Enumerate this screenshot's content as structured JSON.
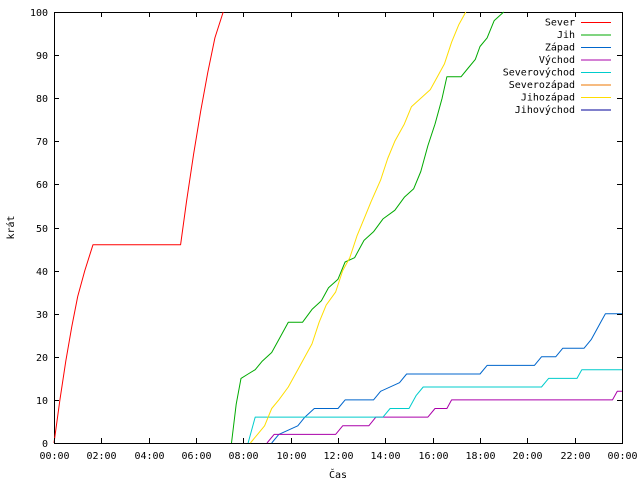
{
  "chart_data": {
    "type": "line",
    "title": "",
    "xlabel": "Čas",
    "ylabel": "krát",
    "xlim": [
      0,
      24
    ],
    "ylim": [
      0,
      100
    ],
    "x_tick_labels": [
      "00:00",
      "02:00",
      "04:00",
      "06:00",
      "08:00",
      "10:00",
      "12:00",
      "14:00",
      "16:00",
      "18:00",
      "20:00",
      "22:00",
      "00:00"
    ],
    "y_tick_labels": [
      "0",
      "10",
      "20",
      "30",
      "40",
      "50",
      "60",
      "70",
      "80",
      "90",
      "100"
    ],
    "legend_position": "top-right",
    "grid": false,
    "series": [
      {
        "name": "Sever",
        "color": "#ff0000",
        "points": [
          [
            0,
            0
          ],
          [
            0.25,
            10
          ],
          [
            0.5,
            19
          ],
          [
            0.75,
            27
          ],
          [
            1.0,
            34
          ],
          [
            1.3,
            40
          ],
          [
            1.65,
            46
          ],
          [
            5.35,
            46
          ],
          [
            5.6,
            56
          ],
          [
            5.9,
            67
          ],
          [
            6.2,
            77
          ],
          [
            6.5,
            86
          ],
          [
            6.8,
            94
          ],
          [
            7.15,
            100
          ]
        ]
      },
      {
        "name": "Jih",
        "color": "#00aa00",
        "points": [
          [
            7.5,
            0
          ],
          [
            7.7,
            9
          ],
          [
            7.9,
            15
          ],
          [
            8.2,
            16
          ],
          [
            8.5,
            17
          ],
          [
            8.8,
            19
          ],
          [
            9.2,
            21
          ],
          [
            9.5,
            24
          ],
          [
            9.9,
            28
          ],
          [
            10.5,
            28
          ],
          [
            10.9,
            31
          ],
          [
            11.3,
            33
          ],
          [
            11.6,
            36
          ],
          [
            12.0,
            38
          ],
          [
            12.3,
            42
          ],
          [
            12.7,
            43
          ],
          [
            13.1,
            47
          ],
          [
            13.5,
            49
          ],
          [
            13.9,
            52
          ],
          [
            14.4,
            54
          ],
          [
            14.8,
            57
          ],
          [
            15.2,
            59
          ],
          [
            15.5,
            63
          ],
          [
            15.8,
            69
          ],
          [
            16.1,
            74
          ],
          [
            16.4,
            80
          ],
          [
            16.6,
            85
          ],
          [
            17.2,
            85
          ],
          [
            17.5,
            87
          ],
          [
            17.8,
            89
          ],
          [
            18.0,
            92
          ],
          [
            18.3,
            94
          ],
          [
            18.6,
            98
          ],
          [
            19.0,
            100
          ]
        ]
      },
      {
        "name": "Západ",
        "color": "#0066cc",
        "points": [
          [
            9.2,
            0
          ],
          [
            9.5,
            2
          ],
          [
            10.3,
            4
          ],
          [
            10.6,
            6
          ],
          [
            11.0,
            8
          ],
          [
            12.0,
            8
          ],
          [
            12.3,
            10
          ],
          [
            13.5,
            10
          ],
          [
            13.8,
            12
          ],
          [
            14.6,
            14
          ],
          [
            14.9,
            16
          ],
          [
            18.0,
            16
          ],
          [
            18.3,
            18
          ],
          [
            20.3,
            18
          ],
          [
            20.6,
            20
          ],
          [
            21.2,
            20
          ],
          [
            21.5,
            22
          ],
          [
            22.4,
            22
          ],
          [
            22.7,
            24
          ],
          [
            22.9,
            26
          ],
          [
            23.1,
            28
          ],
          [
            23.3,
            30
          ],
          [
            24,
            30
          ]
        ]
      },
      {
        "name": "Východ",
        "color": "#aa00aa",
        "points": [
          [
            9.0,
            0
          ],
          [
            9.3,
            2
          ],
          [
            11.9,
            2
          ],
          [
            12.2,
            4
          ],
          [
            13.3,
            4
          ],
          [
            13.6,
            6
          ],
          [
            15.8,
            6
          ],
          [
            16.1,
            8
          ],
          [
            16.6,
            8
          ],
          [
            16.8,
            10
          ],
          [
            23.6,
            10
          ],
          [
            23.8,
            12
          ],
          [
            24,
            12
          ]
        ]
      },
      {
        "name": "Severovýchod",
        "color": "#00cccc",
        "points": [
          [
            8.2,
            0
          ],
          [
            8.5,
            6
          ],
          [
            10.9,
            6
          ],
          [
            11.2,
            6
          ],
          [
            13.9,
            6
          ],
          [
            14.2,
            8
          ],
          [
            15.0,
            8
          ],
          [
            15.3,
            11
          ],
          [
            15.6,
            13
          ],
          [
            20.6,
            13
          ],
          [
            20.9,
            15
          ],
          [
            22.1,
            15
          ],
          [
            22.3,
            17
          ],
          [
            24,
            17
          ]
        ]
      },
      {
        "name": "Severozápad",
        "color": "#ee7700",
        "points": []
      },
      {
        "name": "Jihozápad",
        "color": "#ffdd00",
        "points": [
          [
            8.3,
            0
          ],
          [
            8.6,
            2
          ],
          [
            8.9,
            4
          ],
          [
            9.2,
            8
          ],
          [
            9.5,
            10
          ],
          [
            9.9,
            13
          ],
          [
            10.3,
            17
          ],
          [
            10.6,
            20
          ],
          [
            10.9,
            23
          ],
          [
            11.2,
            28
          ],
          [
            11.5,
            32
          ],
          [
            11.9,
            35
          ],
          [
            12.2,
            40
          ],
          [
            12.5,
            43
          ],
          [
            12.8,
            48
          ],
          [
            13.1,
            52
          ],
          [
            13.4,
            56
          ],
          [
            13.8,
            61
          ],
          [
            14.1,
            66
          ],
          [
            14.4,
            70
          ],
          [
            14.8,
            74
          ],
          [
            15.1,
            78
          ],
          [
            15.5,
            80
          ],
          [
            15.9,
            82
          ],
          [
            16.2,
            85
          ],
          [
            16.5,
            88
          ],
          [
            16.8,
            93
          ],
          [
            17.1,
            97
          ],
          [
            17.4,
            100
          ]
        ]
      },
      {
        "name": "Jihovýchod",
        "color": "#000099",
        "points": []
      }
    ]
  }
}
